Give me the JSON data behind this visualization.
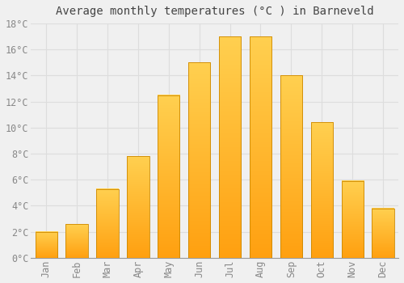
{
  "title": "Average monthly temperatures (°C ) in Barneveld",
  "months": [
    "Jan",
    "Feb",
    "Mar",
    "Apr",
    "May",
    "Jun",
    "Jul",
    "Aug",
    "Sep",
    "Oct",
    "Nov",
    "Dec"
  ],
  "values": [
    2.0,
    2.6,
    5.3,
    7.8,
    12.5,
    15.0,
    17.0,
    17.0,
    14.0,
    10.4,
    5.9,
    3.8
  ],
  "bar_color_top": "#FFD050",
  "bar_color_bottom": "#FFA010",
  "bar_edge_color": "#CC8800",
  "background_color": "#F0F0F0",
  "grid_color": "#DDDDDD",
  "ylim": [
    0,
    18
  ],
  "ytick_step": 2,
  "title_fontsize": 10,
  "tick_fontsize": 8.5,
  "tick_label_color": "#888888",
  "title_color": "#444444"
}
